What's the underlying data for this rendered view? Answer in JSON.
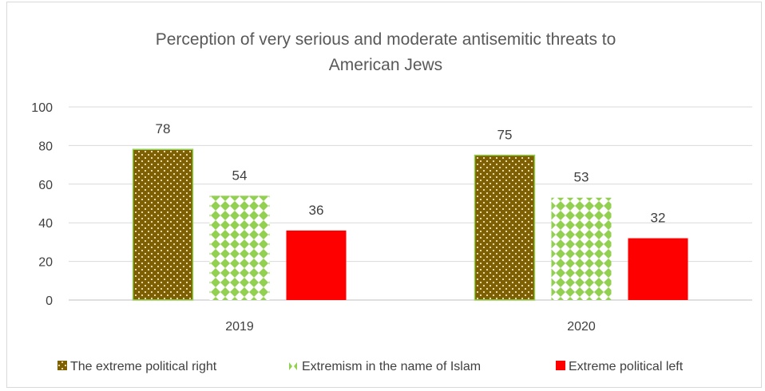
{
  "chart_data": {
    "type": "bar",
    "title": "Perception of very serious and moderate antisemitic threats to American Jews",
    "title_lines": [
      "Perception of very serious and moderate antisemitic threats to",
      "American Jews"
    ],
    "categories": [
      "2019",
      "2020"
    ],
    "series": [
      {
        "name": "The extreme political right",
        "values": [
          78,
          75
        ],
        "color": "#7f6000",
        "pattern": "dots"
      },
      {
        "name": "Extremism in the name of Islam",
        "values": [
          54,
          53
        ],
        "color": "#92d050",
        "pattern": "diamonds"
      },
      {
        "name": "Extreme political left",
        "values": [
          36,
          32
        ],
        "color": "#ff0000",
        "pattern": "solid"
      }
    ],
    "ylim": [
      0,
      100
    ],
    "yticks": [
      0,
      20,
      40,
      60,
      80,
      100
    ],
    "xlabel": "",
    "ylabel": "",
    "grid": true,
    "legend": "bottom",
    "data_labels": true
  }
}
